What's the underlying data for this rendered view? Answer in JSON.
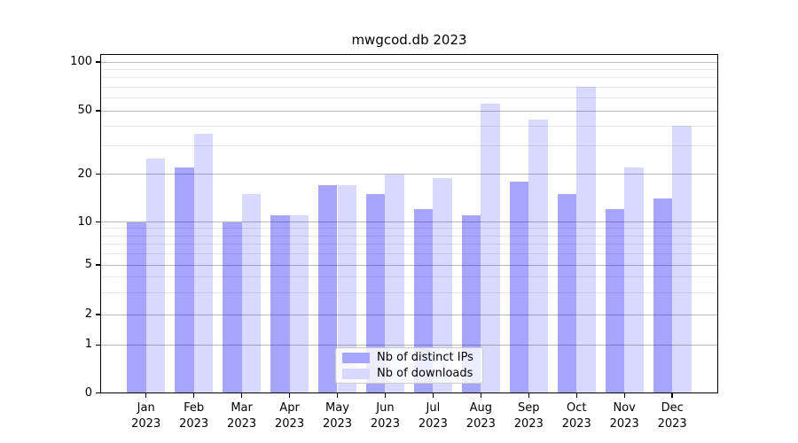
{
  "title": "mwgcod.db 2023",
  "chart_data": {
    "type": "bar",
    "title": "mwgcod.db 2023",
    "categories": [
      "Jan 2023",
      "Feb 2023",
      "Mar 2023",
      "Apr 2023",
      "May 2023",
      "Jun 2023",
      "Jul 2023",
      "Aug 2023",
      "Sep 2023",
      "Oct 2023",
      "Nov 2023",
      "Dec 2023"
    ],
    "months": [
      "Jan",
      "Feb",
      "Mar",
      "Apr",
      "May",
      "Jun",
      "Jul",
      "Aug",
      "Sep",
      "Oct",
      "Nov",
      "Dec"
    ],
    "year_label": "2023",
    "series": [
      {
        "name": "Nb of distinct IPs",
        "color": "#0000ff",
        "alpha": 0.35,
        "solid_hex": "#a6a6ff",
        "values": [
          10,
          22,
          10,
          11,
          17,
          15,
          12,
          11,
          18,
          15,
          12,
          14
        ]
      },
      {
        "name": "Nb of downloads",
        "color": "#0000ff",
        "alpha": 0.15,
        "solid_hex": "#d9d9ff",
        "values": [
          25,
          36,
          15,
          11,
          17,
          20,
          19,
          55,
          44,
          70,
          22,
          40
        ]
      }
    ],
    "ylabel": "",
    "xlabel": "",
    "y_scale": "log-like (0,1,2,5,10,20,50,100)",
    "y_ticks": [
      0,
      1,
      2,
      5,
      10,
      20,
      50,
      100
    ],
    "y_minor_gridlines": [
      3,
      4,
      6,
      7,
      8,
      9,
      30,
      40,
      60,
      70,
      80,
      90
    ],
    "ylim": [
      0,
      120
    ],
    "grid": true,
    "legend_position": "lower center inside",
    "colors": {
      "bar_distinct_ips": "#a6a6ff",
      "bar_downloads": "#d9d9ff",
      "major_grid": "#b9b9b9",
      "minor_grid": "#e9e9e9",
      "axis": "#000000",
      "legend_border": "#cccccc"
    }
  }
}
